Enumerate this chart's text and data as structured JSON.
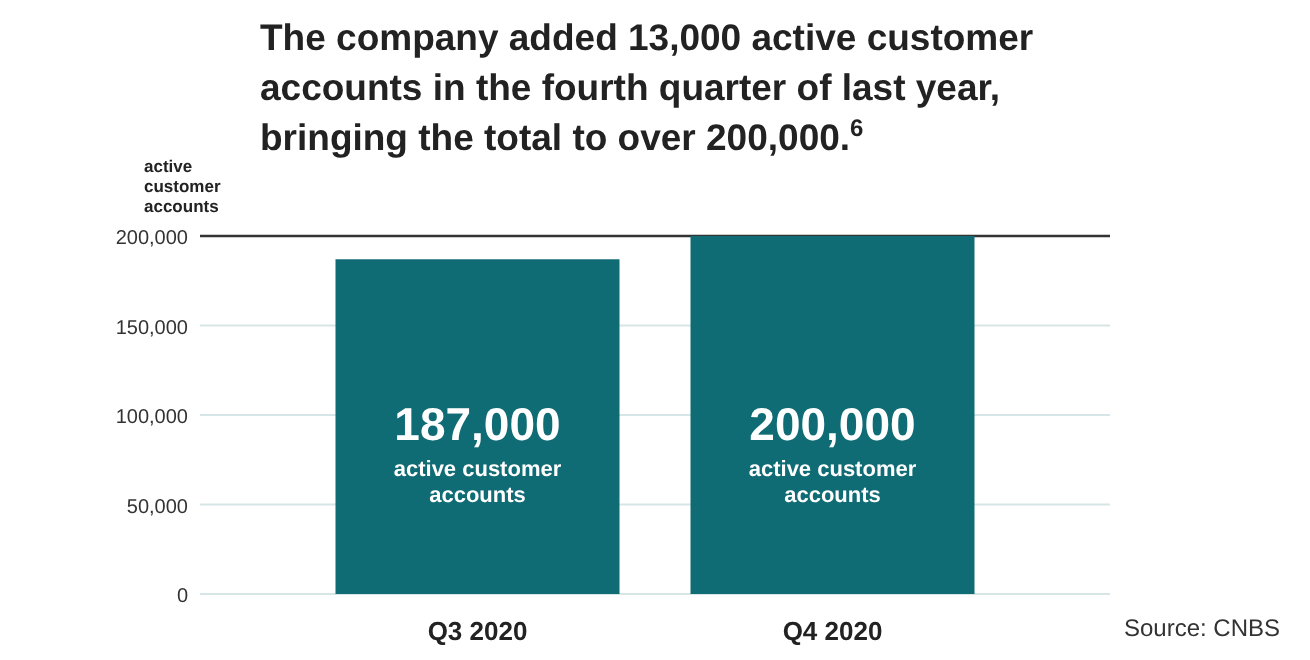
{
  "chart_data": {
    "type": "bar",
    "title": "The company added 13,000 active customer accounts in the fourth quarter of last year, bringing the total to over 200,000.$^{6}$",
    "ylabel": "active customer accounts",
    "categories": [
      "Q3 2020",
      "Q4 2020"
    ],
    "values": [
      187000,
      200000
    ],
    "color": "#0f6b74",
    "value_labels": [
      "187,000",
      "200,000"
    ],
    "ylim": [
      0,
      200000
    ],
    "yticks": [
      {
        "value": 0,
        "label": "0"
      },
      {
        "value": 50000,
        "label": "50,000"
      },
      {
        "value": 100000,
        "label": "100,000"
      },
      {
        "value": 150000,
        "label": "150,000"
      },
      {
        "value": 200000,
        "label": "200,000"
      }
    ],
    "grid": "y",
    "annotations": [
      "active customer accounts",
      "active customer accounts",
      "Source: CNBS"
    ]
  }
}
